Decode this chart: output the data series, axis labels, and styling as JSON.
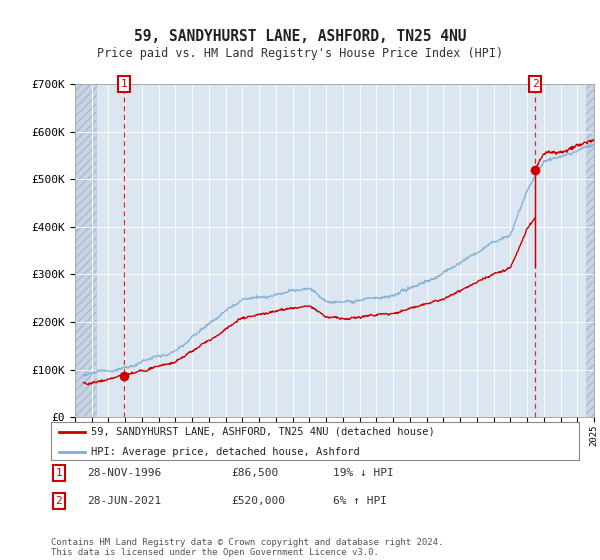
{
  "title": "59, SANDYHURST LANE, ASHFORD, TN25 4NU",
  "subtitle": "Price paid vs. HM Land Registry's House Price Index (HPI)",
  "background_color": "#ffffff",
  "plot_bg_color": "#dce6f1",
  "hatch_color": "#c8d4e4",
  "grid_color": "#ffffff",
  "hpi_color": "#7bafd4",
  "price_color": "#cc0000",
  "marker_color": "#cc0000",
  "sale1_year": 1996.91,
  "sale1_price": 86500,
  "sale1_label": "1",
  "sale2_year": 2021.49,
  "sale2_price": 520000,
  "sale2_label": "2",
  "xmin": 1994,
  "xmax": 2025,
  "ymin": 0,
  "ymax": 700000,
  "yticks": [
    0,
    100000,
    200000,
    300000,
    400000,
    500000,
    600000,
    700000
  ],
  "ytick_labels": [
    "£0",
    "£100K",
    "£200K",
    "£300K",
    "£400K",
    "£500K",
    "£600K",
    "£700K"
  ],
  "legend_line1": "59, SANDYHURST LANE, ASHFORD, TN25 4NU (detached house)",
  "legend_line2": "HPI: Average price, detached house, Ashford",
  "table_row1": [
    "1",
    "28-NOV-1996",
    "£86,500",
    "19% ↓ HPI"
  ],
  "table_row2": [
    "2",
    "28-JUN-2021",
    "£520,000",
    "6% ↑ HPI"
  ],
  "footer": "Contains HM Land Registry data © Crown copyright and database right 2024.\nThis data is licensed under the Open Government Licence v3.0.",
  "hatch_end_year": 1995.3,
  "hatch_start_year": 2024.5
}
